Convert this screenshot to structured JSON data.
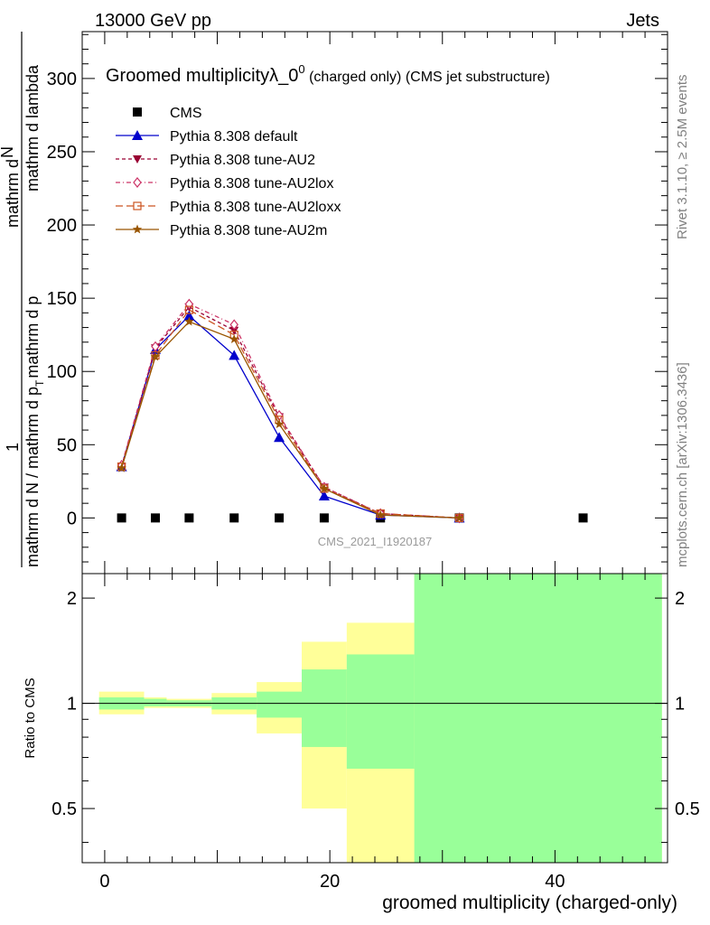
{
  "header": {
    "energy_label": "13000 GeV pp",
    "category_label": "Jets",
    "side_text_top": "Rivet 3.1.10, ≥ 2.5M events",
    "side_text_bottom": "mcplots.cern.ch [arXiv:1306.3436]",
    "watermark": "CMS_2021_I1920187"
  },
  "chart_data": [
    {
      "type": "line",
      "title_main": "Groomed multiplicityλ_0",
      "title_sup": "0",
      "title_tail": " (charged only) (CMS jet substructure)",
      "ylabel_numerator": "1",
      "ylabel_denominator": "mathrm d N / mathrm d p",
      "ylabel_middle": "mathrm d",
      "ylabel_sub": "T",
      "ylabel_tail": "mathrm d p",
      "ylabel_top_a": "mathrm d",
      "ylabel_top_b": "N",
      "ylabel_top_c": "mathrm d lambda",
      "ylim": [
        -38,
        332
      ],
      "xlim": [
        -2,
        50
      ],
      "yticks": [
        0,
        50,
        100,
        150,
        200,
        250,
        300
      ],
      "series": [
        {
          "name": "CMS",
          "color": "#000000",
          "marker": "square",
          "style": "points",
          "x": [
            1.5,
            4.5,
            7.5,
            11.5,
            15.5,
            19.5,
            24.5,
            31.5,
            42.5
          ],
          "y": [
            0,
            0,
            0,
            0,
            0,
            0,
            0,
            0,
            0
          ]
        },
        {
          "name": "Pythia 8.308 default",
          "color": "#0000cc",
          "marker": "triangle-up",
          "style": "solid",
          "x": [
            1.5,
            4.5,
            7.5,
            11.5,
            15.5,
            19.5,
            24.5,
            31.5
          ],
          "y": [
            35,
            115,
            138,
            111,
            55,
            15,
            2,
            0
          ]
        },
        {
          "name": "Pythia 8.308 tune-AU2",
          "color": "#990033",
          "marker": "triangle-down",
          "style": "dash",
          "x": [
            1.5,
            4.5,
            7.5,
            11.5,
            15.5,
            19.5,
            24.5,
            31.5
          ],
          "y": [
            35,
            116,
            144,
            128,
            69,
            21,
            3,
            0
          ]
        },
        {
          "name": "Pythia 8.308 tune-AU2lox",
          "color": "#cc3366",
          "marker": "diamond",
          "style": "dashdot",
          "x": [
            1.5,
            4.5,
            7.5,
            11.5,
            15.5,
            19.5,
            24.5,
            31.5
          ],
          "y": [
            36,
            117,
            146,
            132,
            70,
            21,
            3,
            0
          ]
        },
        {
          "name": "Pythia 8.308 tune-AU2loxx",
          "color": "#cc5522",
          "marker": "square-open",
          "style": "longdash",
          "x": [
            1.5,
            4.5,
            7.5,
            11.5,
            15.5,
            19.5,
            24.5,
            31.5
          ],
          "y": [
            35,
            111,
            142,
            125,
            67,
            20,
            3,
            0
          ]
        },
        {
          "name": "Pythia 8.308 tune-AU2m",
          "color": "#995500",
          "marker": "star",
          "style": "solid",
          "x": [
            1.5,
            4.5,
            7.5,
            11.5,
            15.5,
            19.5,
            24.5,
            31.5
          ],
          "y": [
            34,
            110,
            134,
            122,
            64,
            20,
            2,
            0
          ]
        }
      ]
    },
    {
      "type": "area",
      "ylabel": "Ratio to CMS",
      "xlabel": "groomed multiplicity (charged-only)",
      "ylim": [
        0.35,
        2.35
      ],
      "xlim": [
        -2,
        50
      ],
      "xticks": [
        0,
        20,
        40
      ],
      "yticks": [
        0.5,
        1,
        2
      ],
      "reference_line": 1,
      "bands": [
        {
          "x_low": -0.5,
          "x_high": 3.5,
          "yellow": [
            0.93,
            1.08
          ],
          "green": [
            0.96,
            1.04
          ]
        },
        {
          "x_low": 3.5,
          "x_high": 5.5,
          "yellow": [
            0.97,
            1.04
          ],
          "green": [
            0.98,
            1.03
          ]
        },
        {
          "x_low": 5.5,
          "x_high": 9.5,
          "yellow": [
            0.97,
            1.03
          ],
          "green": [
            0.98,
            1.02
          ]
        },
        {
          "x_low": 9.5,
          "x_high": 13.5,
          "yellow": [
            0.93,
            1.07
          ],
          "green": [
            0.96,
            1.04
          ]
        },
        {
          "x_low": 13.5,
          "x_high": 17.5,
          "yellow": [
            0.82,
            1.15
          ],
          "green": [
            0.91,
            1.08
          ]
        },
        {
          "x_low": 17.5,
          "x_high": 21.5,
          "yellow": [
            0.5,
            1.5
          ],
          "green": [
            0.75,
            1.25
          ]
        },
        {
          "x_low": 21.5,
          "x_high": 27.5,
          "yellow": [
            0.35,
            1.7
          ],
          "green": [
            0.65,
            1.38
          ]
        },
        {
          "x_low": 27.5,
          "x_high": 49.5,
          "yellow": [
            0.35,
            2.35
          ],
          "green": [
            0.35,
            2.35
          ]
        }
      ],
      "band_colors": {
        "yellow": "#ffff99",
        "green": "#99ff99"
      }
    }
  ]
}
